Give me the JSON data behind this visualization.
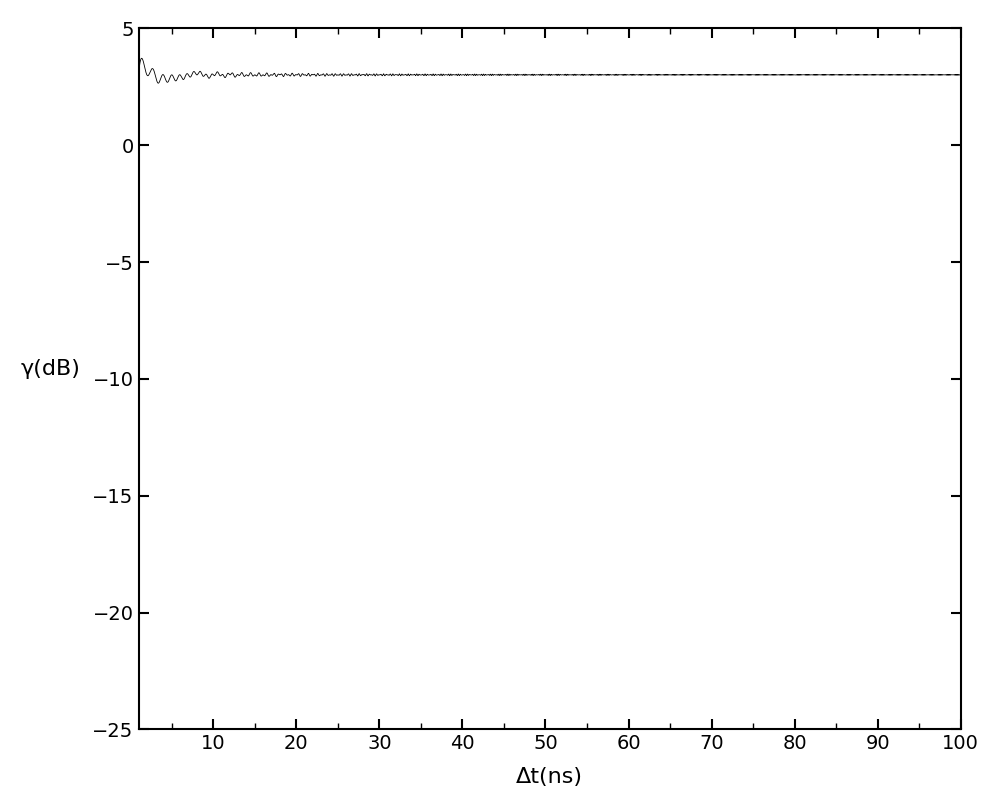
{
  "title": "",
  "xlabel": "Δt(ns)",
  "ylabel": "γ(dB)",
  "xlim": [
    1,
    100
  ],
  "ylim": [
    -25,
    5
  ],
  "xticks": [
    10,
    20,
    30,
    40,
    50,
    60,
    70,
    80,
    90,
    100
  ],
  "yticks": [
    5,
    0,
    -5,
    -10,
    -15,
    -20,
    -25
  ],
  "line_color": "black",
  "line_width": 0.6,
  "background_color": "white",
  "B": 1000000000.0,
  "K": 1e+17,
  "dt_start_ns": 0.2,
  "dt_end_ns": 100,
  "num_points": 500000,
  "gamma_floor": -25,
  "ylabel_rotation": 0,
  "ylabel_pad": 30,
  "xlabel_fontsize": 16,
  "ylabel_fontsize": 16,
  "tick_labelsize": 14
}
